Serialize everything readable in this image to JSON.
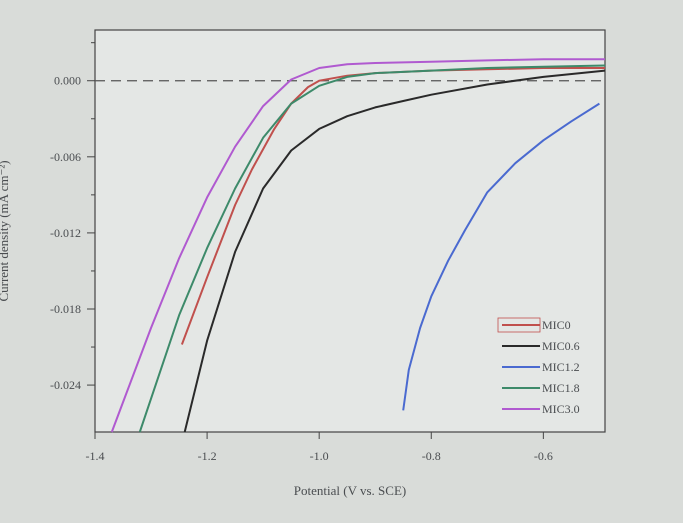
{
  "chart_data": {
    "type": "line",
    "title": "",
    "xlabel": "Potential (V vs. SCE)",
    "ylabel": "Current density (mA cm⁻²)",
    "xlim": [
      -1.4,
      -0.49
    ],
    "ylim": [
      -0.0277,
      0.004
    ],
    "xticks": [
      "-1.4",
      "-1.2",
      "-1.0",
      "-0.8",
      "-0.6"
    ],
    "xtick_values": [
      -1.4,
      -1.2,
      -1.0,
      -0.8,
      -0.6
    ],
    "yticks": [
      "0.000",
      "-0.006",
      "-0.012",
      "-0.018",
      "-0.024"
    ],
    "ytick_values": [
      0,
      -0.006,
      -0.012,
      -0.018,
      -0.024
    ],
    "grid": false,
    "legend_position": "bottom-right",
    "reference_line": {
      "style": "dashed",
      "y": 0,
      "color": "#555555"
    },
    "series": [
      {
        "name": "MIC0",
        "color": "#c0504d",
        "x": [
          -1.245,
          -1.2,
          -1.15,
          -1.12,
          -1.08,
          -1.05,
          -1.02,
          -1.0,
          -0.95,
          -0.9,
          -0.8,
          -0.7,
          -0.6,
          -0.49
        ],
        "y": [
          -0.0208,
          -0.0155,
          -0.0098,
          -0.007,
          -0.0038,
          -0.0018,
          -0.0005,
          0.0,
          0.0004,
          0.0006,
          0.0008,
          0.0009,
          0.001,
          0.001
        ]
      },
      {
        "name": "MIC0.6",
        "color": "#2a2a2a",
        "x": [
          -1.24,
          -1.2,
          -1.15,
          -1.1,
          -1.05,
          -1.0,
          -0.95,
          -0.9,
          -0.85,
          -0.8,
          -0.7,
          -0.6,
          -0.49
        ],
        "y": [
          -0.0277,
          -0.0205,
          -0.0135,
          -0.0085,
          -0.0055,
          -0.0038,
          -0.0028,
          -0.0021,
          -0.0016,
          -0.0011,
          -0.0003,
          0.0003,
          0.0008
        ]
      },
      {
        "name": "MIC1.2",
        "color": "#4a6ad0",
        "x": [
          -0.85,
          -0.84,
          -0.82,
          -0.8,
          -0.77,
          -0.74,
          -0.7,
          -0.65,
          -0.6,
          -0.55,
          -0.5
        ],
        "y": [
          -0.026,
          -0.0228,
          -0.0195,
          -0.017,
          -0.0142,
          -0.0118,
          -0.0088,
          -0.0065,
          -0.0047,
          -0.0032,
          -0.0018
        ]
      },
      {
        "name": "MIC1.8",
        "color": "#3d8a6a",
        "x": [
          -1.32,
          -1.25,
          -1.2,
          -1.15,
          -1.1,
          -1.05,
          -1.0,
          -0.95,
          -0.9,
          -0.8,
          -0.7,
          -0.6,
          -0.49
        ],
        "y": [
          -0.0277,
          -0.0185,
          -0.0132,
          -0.0085,
          -0.0045,
          -0.0018,
          -0.0004,
          0.0003,
          0.0006,
          0.0008,
          0.001,
          0.0011,
          0.0012
        ]
      },
      {
        "name": "MIC3.0",
        "color": "#b05ad0",
        "x": [
          -1.37,
          -1.3,
          -1.25,
          -1.2,
          -1.15,
          -1.1,
          -1.05,
          -1.0,
          -0.95,
          -0.9,
          -0.8,
          -0.7,
          -0.6,
          -0.49
        ],
        "y": [
          -0.0277,
          -0.0195,
          -0.014,
          -0.0092,
          -0.0052,
          -0.002,
          0.0001,
          0.001,
          0.0013,
          0.0014,
          0.0015,
          0.0016,
          0.0017,
          0.0017
        ]
      }
    ]
  }
}
